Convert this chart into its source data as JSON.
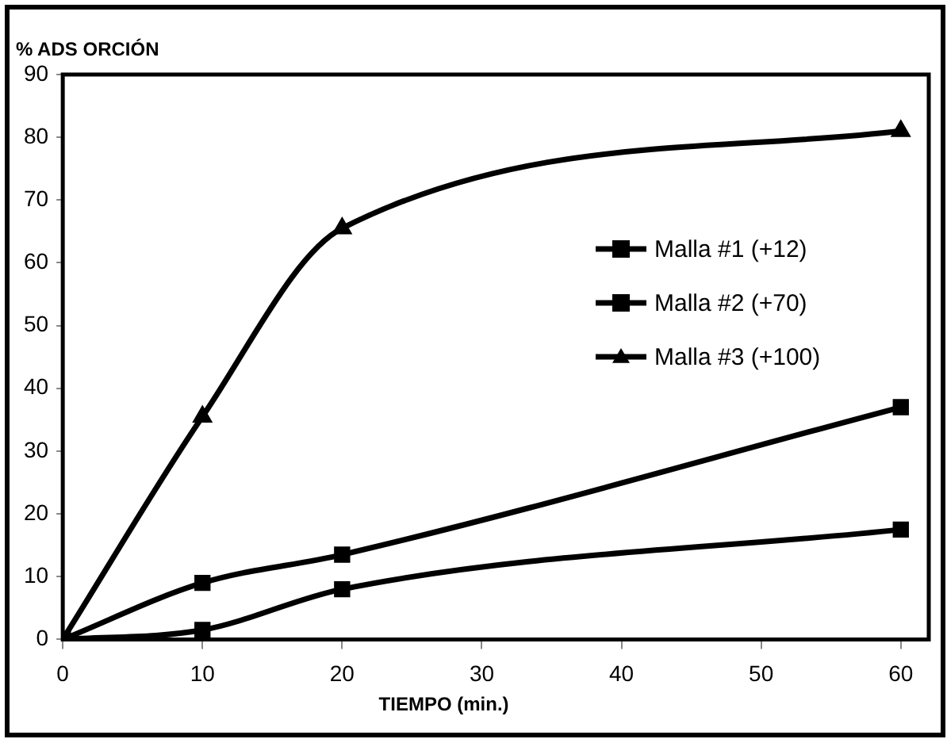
{
  "chart_data": {
    "type": "line",
    "ylabel": "% ADS ORCIÓN",
    "xlabel": "TIEMPO (min.)",
    "x": [
      0,
      10,
      20,
      60
    ],
    "xlim": [
      0,
      62
    ],
    "xticks": [
      0,
      10,
      20,
      30,
      40,
      50,
      60
    ],
    "ylim": [
      0,
      90
    ],
    "yticks": [
      0,
      10,
      20,
      30,
      40,
      50,
      60,
      70,
      80,
      90
    ],
    "grid": false,
    "legend": "right",
    "series": [
      {
        "name": "Malla #1 (+12)",
        "color": "#000000",
        "marker": "square",
        "values": [
          0,
          1.5,
          8,
          17.5
        ]
      },
      {
        "name": "Malla #2 (+70)",
        "color": "#000000",
        "marker": "square",
        "values": [
          0,
          9,
          13.5,
          37
        ]
      },
      {
        "name": "Malla #3 (+100)",
        "color": "#000000",
        "marker": "triangle",
        "values": [
          0,
          35.5,
          65.5,
          81
        ]
      }
    ]
  }
}
